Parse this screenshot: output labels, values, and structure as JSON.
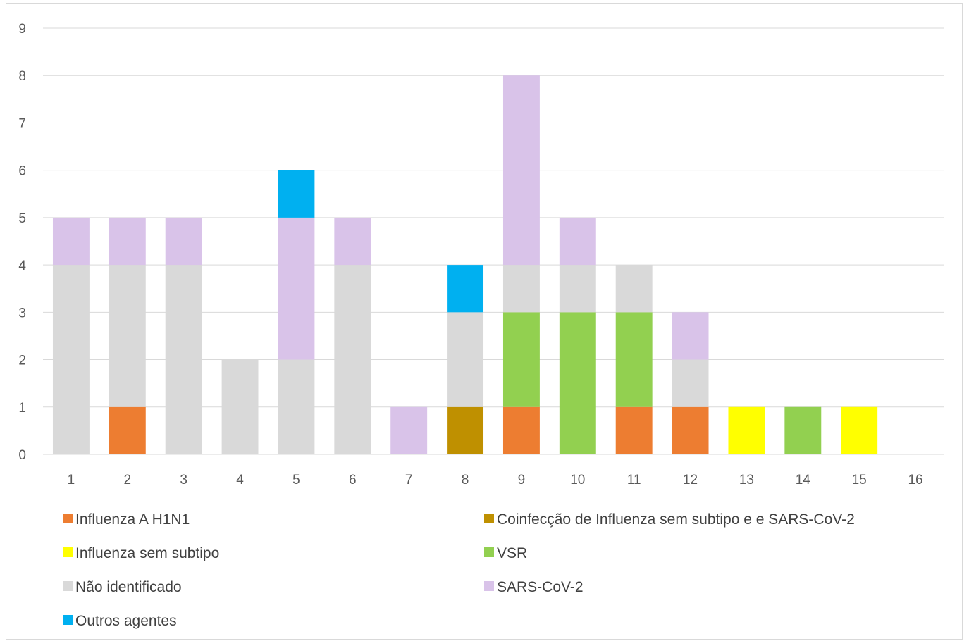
{
  "chart_data": {
    "type": "bar",
    "stacked": true,
    "title": "",
    "xlabel": "",
    "ylabel": "",
    "categories": [
      "1",
      "2",
      "3",
      "4",
      "5",
      "6",
      "7",
      "8",
      "9",
      "10",
      "11",
      "12",
      "13",
      "14",
      "15",
      "16"
    ],
    "ylim": [
      0,
      9
    ],
    "yticks": [
      "0",
      "1",
      "2",
      "3",
      "4",
      "5",
      "6",
      "7",
      "8",
      "9"
    ],
    "grid": true,
    "legend_placement": "bottom",
    "series": [
      {
        "name": "Influenza A H1N1",
        "color": "#ED7D31",
        "values": [
          0,
          1,
          0,
          0,
          0,
          0,
          0,
          0,
          1,
          0,
          1,
          1,
          0,
          0,
          0,
          0
        ]
      },
      {
        "name": "Coinfecção de Influenza sem subtipo e e SARS-CoV-2",
        "color": "#BF9000",
        "values": [
          0,
          0,
          0,
          0,
          0,
          0,
          0,
          1,
          0,
          0,
          0,
          0,
          0,
          0,
          0,
          0
        ]
      },
      {
        "name": "Influenza sem subtipo",
        "color": "#FFFF00",
        "values": [
          0,
          0,
          0,
          0,
          0,
          0,
          0,
          0,
          0,
          0,
          0,
          0,
          1,
          0,
          1,
          0
        ]
      },
      {
        "name": "VSR",
        "color": "#92D050",
        "values": [
          0,
          0,
          0,
          0,
          0,
          0,
          0,
          0,
          2,
          3,
          2,
          0,
          0,
          1,
          0,
          0
        ]
      },
      {
        "name": "Não identificado",
        "color": "#D9D9D9",
        "values": [
          4,
          3,
          4,
          2,
          2,
          4,
          0,
          2,
          1,
          1,
          1,
          1,
          0,
          0,
          0,
          0
        ]
      },
      {
        "name": "SARS-CoV-2",
        "color": "#D9C3E9",
        "values": [
          1,
          1,
          1,
          0,
          3,
          1,
          1,
          0,
          4,
          1,
          0,
          1,
          0,
          0,
          0,
          0
        ]
      },
      {
        "name": "Outros agentes",
        "color": "#00B0F0",
        "values": [
          0,
          0,
          0,
          0,
          1,
          0,
          0,
          1,
          0,
          0,
          0,
          0,
          0,
          0,
          0,
          0
        ]
      }
    ]
  }
}
